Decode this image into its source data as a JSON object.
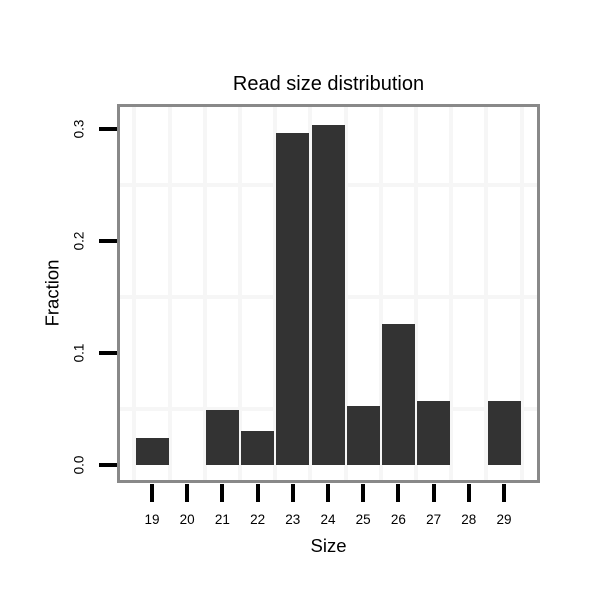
{
  "chart_data": {
    "type": "bar",
    "title": "Read size distribution",
    "xlabel": "Size",
    "ylabel": "Fraction",
    "categories": [
      "19",
      "20",
      "21",
      "22",
      "23",
      "24",
      "25",
      "26",
      "27",
      "28",
      "29"
    ],
    "values": [
      0.024,
      0,
      0.049,
      0.03,
      0.296,
      0.304,
      0.053,
      0.126,
      0.057,
      0,
      0.057
    ],
    "yticks": [
      0.0,
      0.1,
      0.2,
      0.3
    ],
    "ytick_labels": [
      "0.0",
      "0.1",
      "0.2",
      "0.3"
    ],
    "ylim": [
      0,
      0.32
    ],
    "minor_gridlines_y": [
      0.05,
      0.15,
      0.25
    ],
    "grid": "minor gridlines only, very light; vertical lines at category boundaries",
    "legend": false,
    "colors": {
      "bar": "#333333",
      "panel_border": "#898989",
      "gridline": "#f6f6f6",
      "tick": "#000000",
      "text": "#000000",
      "background": "#ffffff"
    }
  }
}
